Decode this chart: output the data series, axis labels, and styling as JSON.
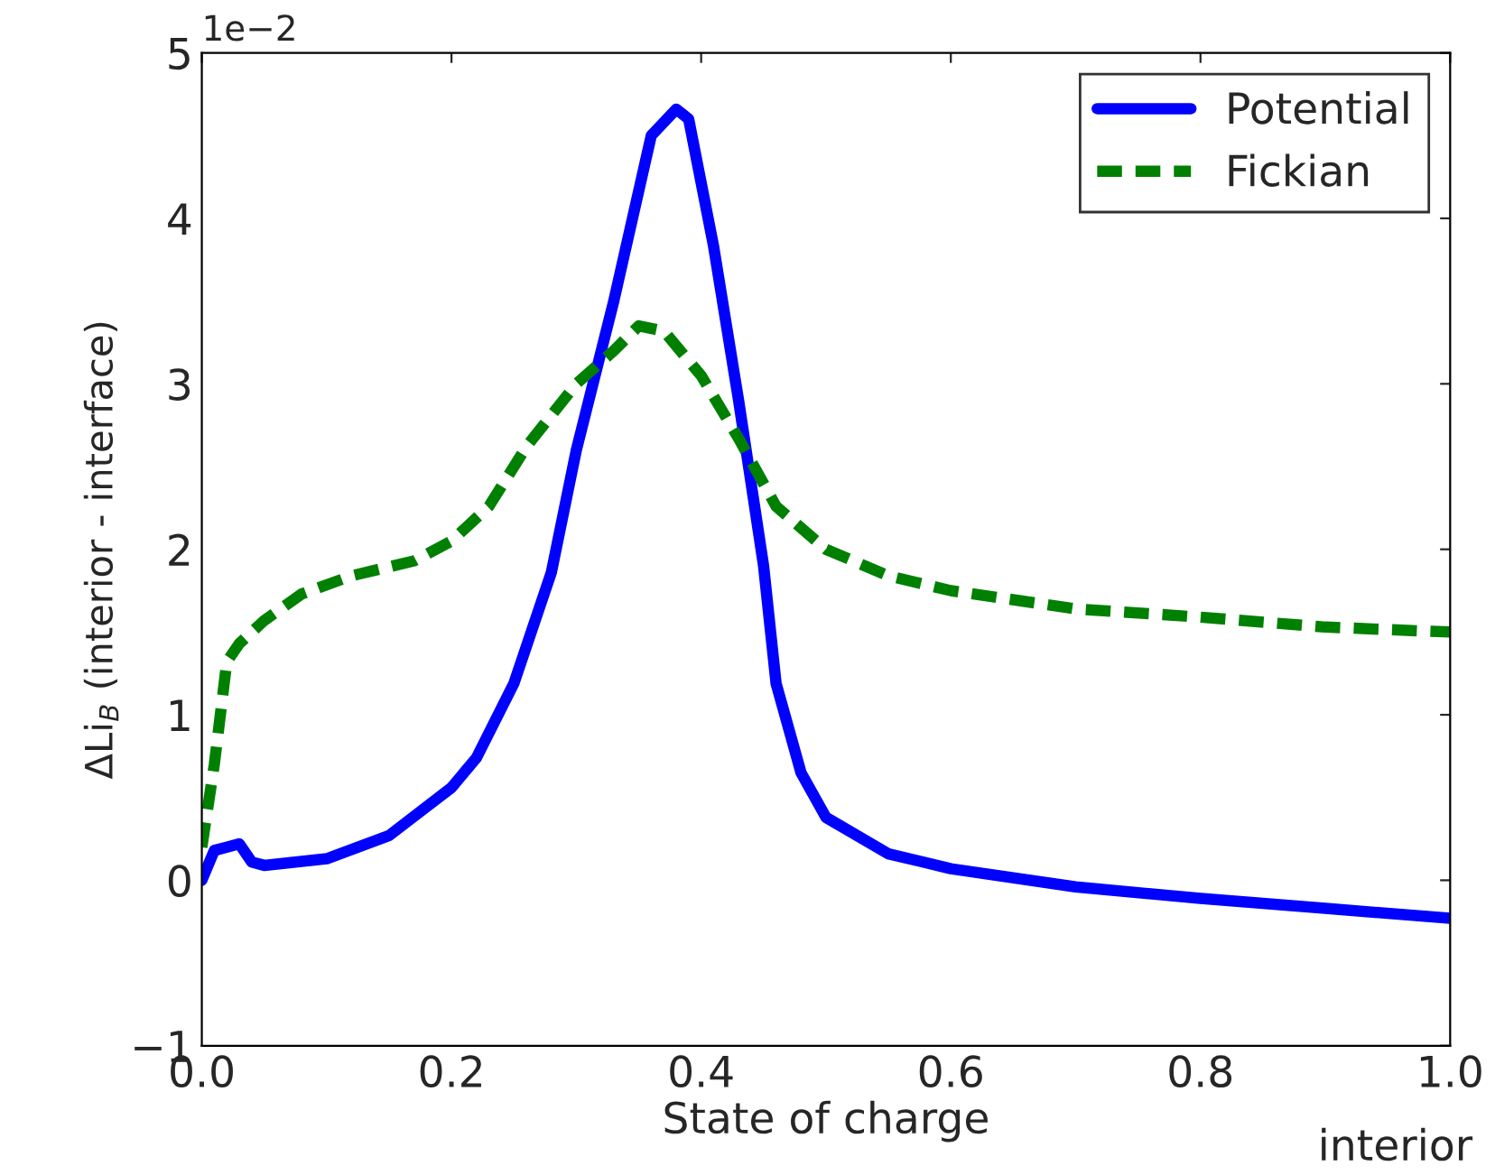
{
  "chart_data": {
    "type": "line",
    "xlabel": "State of charge",
    "ylabel": "ΔLi$_{B}$ (interior - interface)",
    "xlim": [
      0,
      1
    ],
    "xticks": [
      {
        "value": 0,
        "label": "0.0"
      },
      {
        "value": 0.2,
        "label": "0.2"
      },
      {
        "value": 0.4,
        "label": "0.4"
      },
      {
        "value": 0.6,
        "label": "0.6"
      },
      {
        "value": 0.8,
        "label": "0.8"
      },
      {
        "value": 1,
        "label": "1.0"
      }
    ],
    "ylim": [
      -1,
      5
    ],
    "yticks": [
      -1,
      0,
      1,
      2,
      3,
      4,
      5
    ],
    "grid": false,
    "legend": "top right",
    "annotations": [
      "1e−2",
      "interior"
    ],
    "series": [
      {
        "name": "Potential",
        "color": "#0000ff",
        "line_style": "solid",
        "x": [
          0,
          0.01,
          0.02,
          0.03,
          0.04,
          0.05,
          0.1,
          0.15,
          0.2,
          0.22,
          0.25,
          0.28,
          0.3,
          0.33,
          0.36,
          0.38,
          0.39,
          0.41,
          0.43,
          0.45,
          0.46,
          0.48,
          0.5,
          0.55,
          0.6,
          0.7,
          0.8,
          0.9,
          1.0
        ],
        "values": [
          0,
          0.18,
          0.2,
          0.22,
          0.11,
          0.09,
          0.13,
          0.27,
          0.56,
          0.74,
          1.19,
          1.86,
          2.6,
          3.5,
          4.5,
          4.66,
          4.6,
          3.83,
          2.9,
          1.9,
          1.19,
          0.65,
          0.38,
          0.16,
          0.07,
          -0.04,
          -0.11,
          -0.17,
          -0.23
        ]
      },
      {
        "name": "Fickian",
        "color": "#008000",
        "line_style": "dashed",
        "x": [
          0,
          0.01,
          0.02,
          0.03,
          0.04,
          0.05,
          0.08,
          0.12,
          0.17,
          0.2,
          0.23,
          0.26,
          0.3,
          0.33,
          0.35,
          0.37,
          0.4,
          0.43,
          0.46,
          0.5,
          0.55,
          0.6,
          0.7,
          0.8,
          0.9,
          1.0
        ],
        "values": [
          0.2,
          0.7,
          1.32,
          1.43,
          1.5,
          1.57,
          1.73,
          1.84,
          1.93,
          2.05,
          2.26,
          2.62,
          3.0,
          3.2,
          3.35,
          3.32,
          3.05,
          2.67,
          2.26,
          2.0,
          1.84,
          1.75,
          1.64,
          1.59,
          1.53,
          1.5
        ]
      }
    ]
  }
}
